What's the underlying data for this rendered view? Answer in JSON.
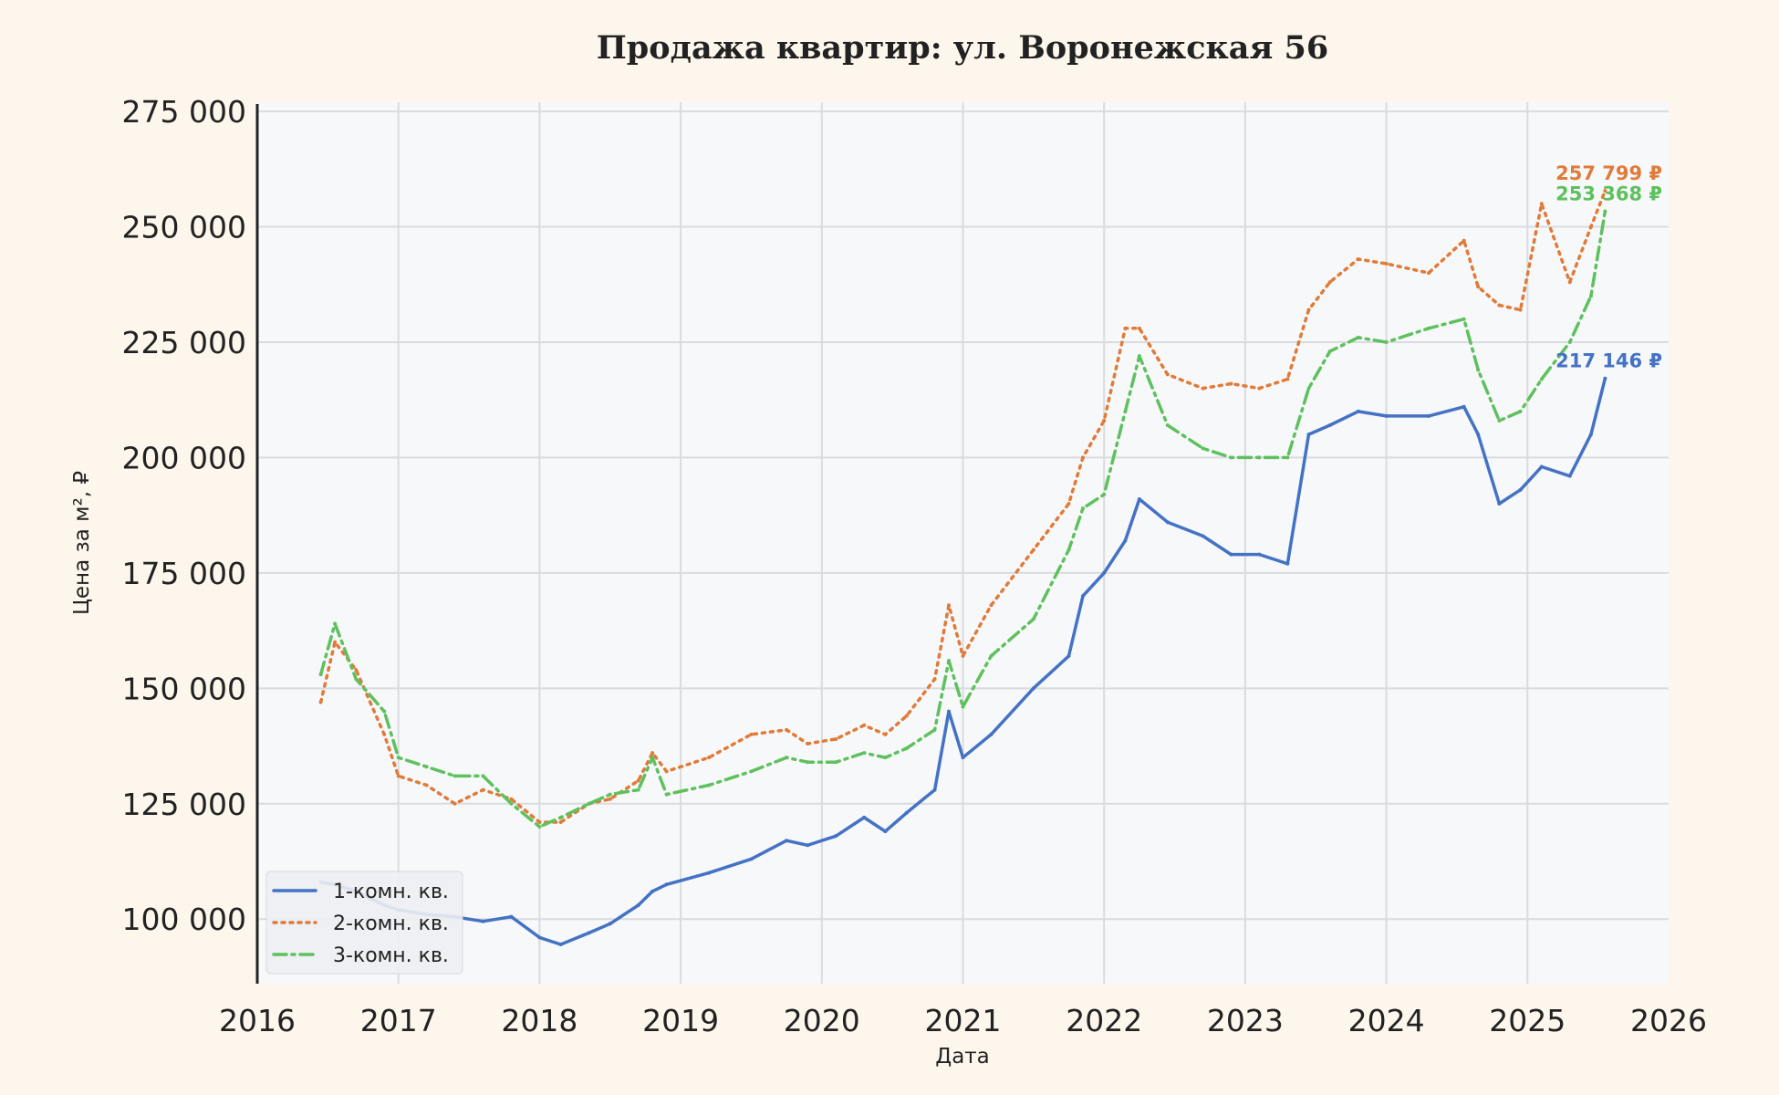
{
  "chart_data": {
    "type": "line",
    "title": "Продажа квартир: ул. Воронежская 56",
    "xlabel": "Дата",
    "ylabel": "Цена за м², ₽",
    "xlim": [
      2016,
      2026
    ],
    "ylim": [
      86000,
      277000
    ],
    "x_ticks": [
      "2016",
      "2017",
      "2018",
      "2019",
      "2020",
      "2021",
      "2022",
      "2023",
      "2024",
      "2025",
      "2026"
    ],
    "y_ticks": [
      {
        "value": 100000,
        "label": "100 000"
      },
      {
        "value": 125000,
        "label": "125 000"
      },
      {
        "value": 150000,
        "label": "150 000"
      },
      {
        "value": 175000,
        "label": "175 000"
      },
      {
        "value": 200000,
        "label": "200 000"
      },
      {
        "value": 225000,
        "label": "225 000"
      },
      {
        "value": 250000,
        "label": "250 000"
      },
      {
        "value": 275000,
        "label": "275 000"
      }
    ],
    "grid": true,
    "legend_position": "bottom-left",
    "x": [
      2016.45,
      2016.55,
      2016.7,
      2016.9,
      2017.0,
      2017.2,
      2017.4,
      2017.6,
      2017.8,
      2018.0,
      2018.15,
      2018.35,
      2018.5,
      2018.7,
      2018.8,
      2018.9,
      2019.2,
      2019.5,
      2019.75,
      2019.9,
      2020.1,
      2020.3,
      2020.45,
      2020.6,
      2020.8,
      2020.9,
      2021.0,
      2021.2,
      2021.5,
      2021.75,
      2021.85,
      2022.0,
      2022.15,
      2022.25,
      2022.45,
      2022.7,
      2022.9,
      2023.1,
      2023.3,
      2023.45,
      2023.6,
      2023.8,
      2024.0,
      2024.3,
      2024.55,
      2024.65,
      2024.8,
      2024.95,
      2025.1,
      2025.3,
      2025.45,
      2025.55
    ],
    "series": [
      {
        "name": "1-комн. кв.",
        "color": "#4472c4",
        "dash": "solid",
        "marker": "small-dot",
        "end_label": "217 146 ₽",
        "values": [
          108000,
          107500,
          106000,
          103000,
          102000,
          101000,
          100500,
          99500,
          100500,
          96000,
          94500,
          97000,
          99000,
          103000,
          106000,
          107500,
          110000,
          113000,
          117000,
          116000,
          118000,
          122000,
          119000,
          123000,
          128000,
          145000,
          135000,
          140000,
          150000,
          157000,
          170000,
          175000,
          182000,
          191000,
          186000,
          183000,
          179000,
          179000,
          177000,
          205000,
          207000,
          210000,
          209000,
          209000,
          211000,
          205000,
          190000,
          193000,
          198000,
          196000,
          205000,
          217146
        ]
      },
      {
        "name": "2-комн. кв.",
        "color": "#e07b39",
        "dash": "dotted",
        "marker": "none",
        "end_label": "257 799 ₽",
        "values": [
          147000,
          160000,
          154000,
          140000,
          131000,
          129000,
          125000,
          128000,
          126000,
          121000,
          121000,
          125000,
          126000,
          130000,
          136000,
          132000,
          135000,
          140000,
          141000,
          138000,
          139000,
          142000,
          140000,
          144000,
          152000,
          168000,
          157000,
          168000,
          180000,
          190000,
          200000,
          208000,
          228000,
          228000,
          218000,
          215000,
          216000,
          215000,
          217000,
          232000,
          238000,
          243000,
          242000,
          240000,
          247000,
          237000,
          233000,
          232000,
          255000,
          238000,
          250000,
          257799
        ]
      },
      {
        "name": "3-комн. кв.",
        "color": "#5ec15e",
        "dash": "dashdot",
        "marker": "small-dot",
        "end_label": "253 368 ₽",
        "values": [
          153000,
          164000,
          152000,
          145000,
          135000,
          133000,
          131000,
          131000,
          125000,
          120000,
          122000,
          125000,
          127000,
          128000,
          135000,
          127000,
          129000,
          132000,
          135000,
          134000,
          134000,
          136000,
          135000,
          137000,
          141000,
          156000,
          146000,
          157000,
          165000,
          180000,
          189000,
          192000,
          210000,
          222000,
          207000,
          202000,
          200000,
          200000,
          200000,
          215000,
          223000,
          226000,
          225000,
          228000,
          230000,
          219000,
          208000,
          210000,
          217000,
          225000,
          235000,
          253368
        ]
      }
    ]
  }
}
